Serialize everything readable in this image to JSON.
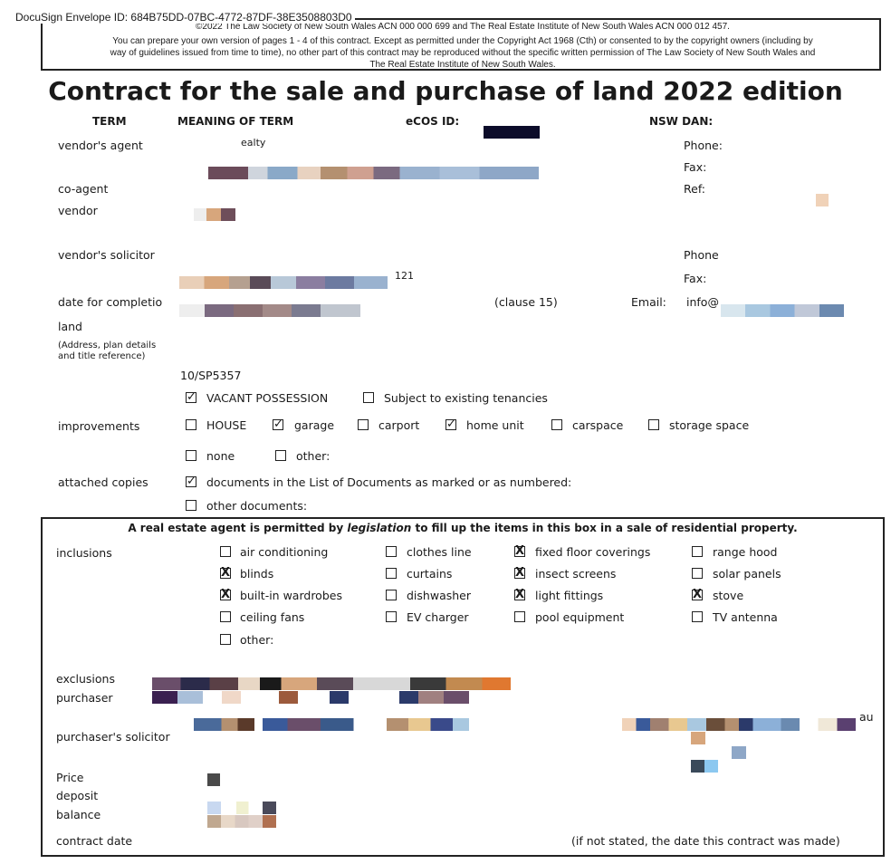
{
  "envelope_id": "DocuSign Envelope ID: 684B75DD-07BC-4772-87DF-38E3508803D0",
  "copyright": {
    "line1": "©2022 The Law Society of New South Wales ACN 000 000 699 and The Real Estate Institute of New South Wales ACN 000 012 457.",
    "line2": "You can prepare your own version of pages 1 - 4 of this contract. Except as permitted under the Copyright Act 1968 (Cth) or consented to by the copyright owners (including by",
    "line3": "way of guidelines issued from time to time), no other part of this contract may be reproduced without the specific written permission of The Law Society of New South Wales and",
    "line4": "The Real Estate Institute of New South Wales."
  },
  "title": "Contract for the sale and purchase of land 2022 edition",
  "headers": {
    "term": "TERM",
    "meaning": "MEANING OF TERM",
    "ecos": "eCOS ID:",
    "dan": "NSW DAN:"
  },
  "rows": {
    "vendors_agent": "vendor's agent",
    "agent_name_fragment": "ealty",
    "co_agent": "co-agent",
    "vendor": "vendor",
    "vendors_solicitor": "vendor's solicitor",
    "solicitor_fragment": "121",
    "date_for_completion": "date for completio",
    "clause": "(clause 15)",
    "land": "land",
    "land_note": "(Address, plan details and title reference)",
    "land_ref": "10/SP5357",
    "improvements": "improvements",
    "attached_copies": "attached copies"
  },
  "contact": {
    "phone": "Phone:",
    "fax": "Fax:",
    "ref": "Ref:",
    "phone2": "Phone",
    "fax2": "Fax:",
    "email_label": "Email:",
    "email_value": "info@"
  },
  "possession": [
    {
      "label": "VACANT POSSESSION",
      "mark": "✓"
    },
    {
      "label": "Subject to existing tenancies",
      "mark": ""
    }
  ],
  "improvements": [
    {
      "label": "HOUSE",
      "mark": ""
    },
    {
      "label": "garage",
      "mark": "✓"
    },
    {
      "label": "carport",
      "mark": ""
    },
    {
      "label": "home unit",
      "mark": "✓"
    },
    {
      "label": "carspace",
      "mark": ""
    },
    {
      "label": "storage space",
      "mark": ""
    },
    {
      "label": "none",
      "mark": ""
    },
    {
      "label": "other:",
      "mark": ""
    }
  ],
  "attached": [
    {
      "label": "documents in the List of Documents as marked or as numbered:",
      "mark": "✓"
    },
    {
      "label": "other documents:",
      "mark": ""
    }
  ],
  "agent_box": {
    "heading_pre": "A real estate agent is permitted by ",
    "heading_em": "legislation",
    "heading_post": " to fill up the items in this box in a sale of residential property.",
    "inclusions_label": "inclusions",
    "inclusions": [
      {
        "label": "air conditioning",
        "mark": ""
      },
      {
        "label": "clothes line",
        "mark": ""
      },
      {
        "label": "fixed floor coverings",
        "mark": "X"
      },
      {
        "label": "range hood",
        "mark": ""
      },
      {
        "label": "blinds",
        "mark": "X"
      },
      {
        "label": "curtains",
        "mark": ""
      },
      {
        "label": "insect screens",
        "mark": "X"
      },
      {
        "label": "solar panels",
        "mark": ""
      },
      {
        "label": "built-in wardrobes",
        "mark": "X"
      },
      {
        "label": "dishwasher",
        "mark": ""
      },
      {
        "label": "light fittings",
        "mark": "X"
      },
      {
        "label": "stove",
        "mark": "X"
      },
      {
        "label": "ceiling fans",
        "mark": ""
      },
      {
        "label": "EV charger",
        "mark": ""
      },
      {
        "label": "pool equipment",
        "mark": ""
      },
      {
        "label": "TV antenna",
        "mark": ""
      },
      {
        "label": "other:",
        "mark": ""
      }
    ],
    "exclusions": "exclusions",
    "purchaser": "purchaser",
    "purchasers_solicitor": "purchaser's solicitor",
    "solicitor_suffix": "au",
    "price": "Price",
    "deposit": "deposit",
    "balance": "balance",
    "contract_date": "contract date",
    "contract_note": "(if not stated, the date this contract was made)"
  }
}
